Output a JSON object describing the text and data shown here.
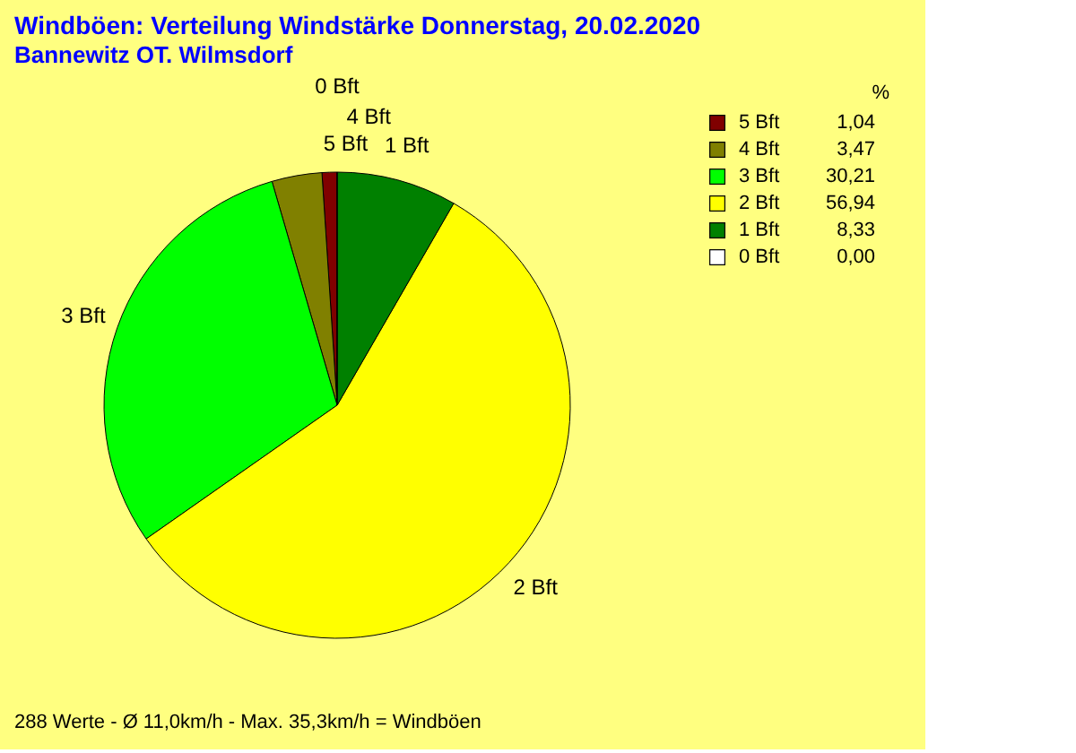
{
  "chart_data": {
    "type": "pie",
    "title": "Windböen: Verteilung Windstärke  Donnerstag, 20.02.2020",
    "subtitle": "Bannewitz OT. Wilmsdorf",
    "categories": [
      "5 Bft",
      "4 Bft",
      "3 Bft",
      "2 Bft",
      "1 Bft",
      "0 Bft"
    ],
    "values": [
      1.04,
      3.47,
      30.21,
      56.94,
      8.33,
      0.0
    ],
    "colors": [
      "#800000",
      "#808000",
      "#00ff00",
      "#ffff00",
      "#008000",
      "#ffffff"
    ],
    "value_labels": [
      "1,04",
      "3,47",
      "30,21",
      "56,94",
      "8,33",
      "0,00"
    ],
    "legend_title": "%",
    "legend": "right",
    "annotations": [
      "288 Werte   -   Ø 11,0km/h   -  Max. 35,3km/h = Windböen"
    ]
  }
}
